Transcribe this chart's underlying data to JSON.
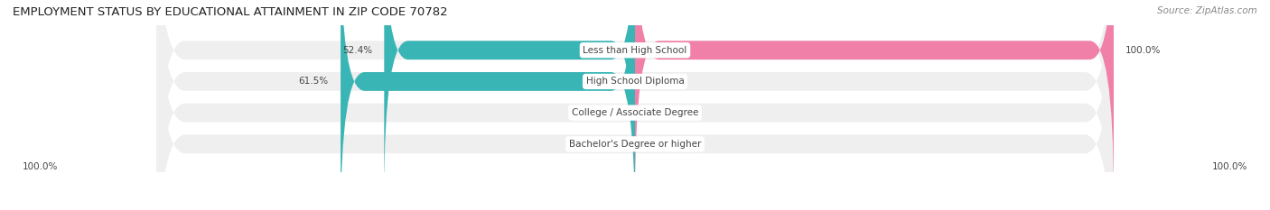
{
  "title": "EMPLOYMENT STATUS BY EDUCATIONAL ATTAINMENT IN ZIP CODE 70782",
  "source": "Source: ZipAtlas.com",
  "categories": [
    "Less than High School",
    "High School Diploma",
    "College / Associate Degree",
    "Bachelor's Degree or higher"
  ],
  "in_labor_force": [
    52.4,
    61.5,
    0.0,
    0.0
  ],
  "unemployed": [
    100.0,
    0.0,
    0.0,
    0.0
  ],
  "labor_force_color": "#3ab5b5",
  "unemployed_color": "#f080a8",
  "bar_background_color": "#efefef",
  "title_fontsize": 9.5,
  "source_fontsize": 7.5,
  "label_fontsize": 7.5,
  "value_fontsize": 7.5,
  "legend_fontsize": 8,
  "bottom_left_label": "100.0%",
  "bottom_right_label": "100.0%",
  "bar_height": 0.6,
  "max_value": 100.0,
  "bg_color": "#ffffff",
  "xlim_left": -130,
  "xlim_right": 130
}
